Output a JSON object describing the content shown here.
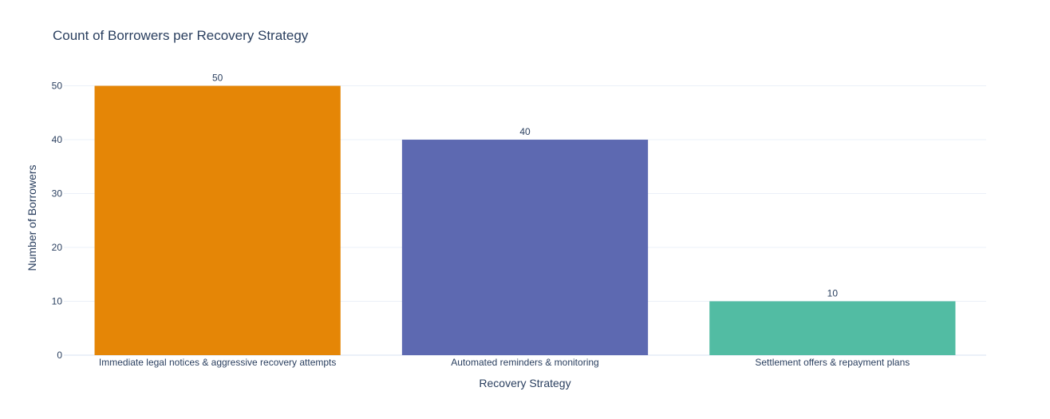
{
  "chart_data": {
    "type": "bar",
    "title": "Count of Borrowers per Recovery Strategy",
    "xlabel": "Recovery Strategy",
    "ylabel": "Number of Borrowers",
    "categories": [
      "Immediate legal notices & aggressive recovery attempts",
      "Automated reminders & monitoring",
      "Settlement offers & repayment plans"
    ],
    "values": [
      50,
      40,
      10
    ],
    "value_labels": [
      "50",
      "40",
      "10"
    ],
    "colors": [
      "#e58606",
      "#5d69b1",
      "#52bca3"
    ],
    "ylim": [
      0,
      52.6
    ],
    "yticks": [
      0,
      10,
      20,
      30,
      40,
      50
    ],
    "grid": true,
    "legend": "none"
  }
}
